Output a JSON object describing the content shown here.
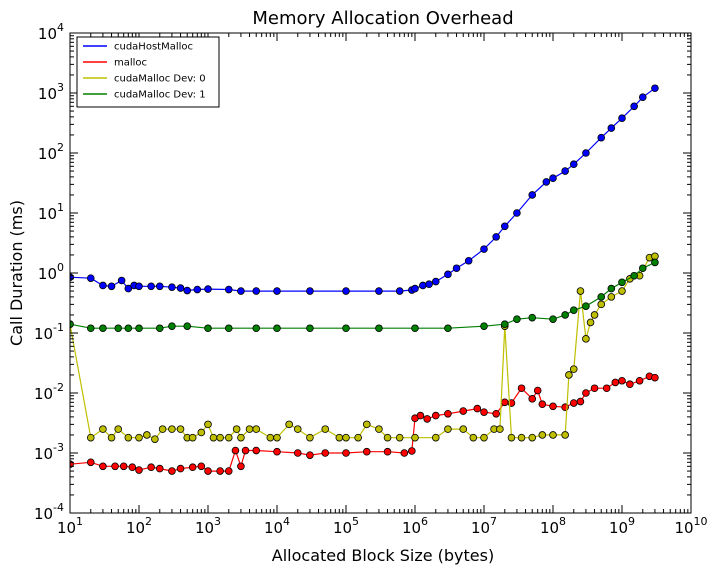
{
  "chart_data": {
    "type": "line",
    "title": "Memory Allocation Overhead",
    "xlabel": "Allocated Block Size (bytes)",
    "ylabel": "Call Duration (ms)",
    "xscale": "log",
    "yscale": "log",
    "xlim": [
      10,
      10000000000
    ],
    "ylim": [
      0.0001,
      10000
    ],
    "x_ticks": [
      {
        "base": "10",
        "exp": "1"
      },
      {
        "base": "10",
        "exp": "2"
      },
      {
        "base": "10",
        "exp": "3"
      },
      {
        "base": "10",
        "exp": "4"
      },
      {
        "base": "10",
        "exp": "5"
      },
      {
        "base": "10",
        "exp": "6"
      },
      {
        "base": "10",
        "exp": "7"
      },
      {
        "base": "10",
        "exp": "8"
      },
      {
        "base": "10",
        "exp": "9"
      },
      {
        "base": "10",
        "exp": "10"
      }
    ],
    "y_ticks": [
      {
        "base": "10",
        "exp": "-4"
      },
      {
        "base": "10",
        "exp": "-3"
      },
      {
        "base": "10",
        "exp": "-2"
      },
      {
        "base": "10",
        "exp": "-1"
      },
      {
        "base": "10",
        "exp": "0"
      },
      {
        "base": "10",
        "exp": "1"
      },
      {
        "base": "10",
        "exp": "2"
      },
      {
        "base": "10",
        "exp": "3"
      },
      {
        "base": "10",
        "exp": "4"
      }
    ],
    "legend_position": "top-left",
    "grid": false,
    "series": [
      {
        "name": "cudaHostMalloc",
        "color": "#0000ff",
        "marker": "circle",
        "points": [
          [
            10,
            0.85
          ],
          [
            20,
            0.82
          ],
          [
            30,
            0.62
          ],
          [
            40,
            0.6
          ],
          [
            56,
            0.75
          ],
          [
            70,
            0.55
          ],
          [
            85,
            0.62
          ],
          [
            100,
            0.6
          ],
          [
            150,
            0.6
          ],
          [
            200,
            0.6
          ],
          [
            300,
            0.58
          ],
          [
            400,
            0.56
          ],
          [
            500,
            0.51
          ],
          [
            700,
            0.53
          ],
          [
            1000,
            0.54
          ],
          [
            2000,
            0.53
          ],
          [
            3000,
            0.5
          ],
          [
            5000,
            0.5
          ],
          [
            10000,
            0.5
          ],
          [
            30000,
            0.5
          ],
          [
            100000,
            0.5
          ],
          [
            300000,
            0.5
          ],
          [
            600000,
            0.5
          ],
          [
            900000,
            0.52
          ],
          [
            1000000,
            0.55
          ],
          [
            1300000,
            0.62
          ],
          [
            1600000,
            0.65
          ],
          [
            2000000,
            0.72
          ],
          [
            3000000,
            0.95
          ],
          [
            4000000,
            1.2
          ],
          [
            6000000,
            1.6
          ],
          [
            10000000,
            2.5
          ],
          [
            15000000,
            4
          ],
          [
            20000000,
            6
          ],
          [
            30000000,
            10
          ],
          [
            50000000,
            20
          ],
          [
            80000000,
            33
          ],
          [
            100000000,
            38
          ],
          [
            150000000,
            50
          ],
          [
            200000000,
            65
          ],
          [
            300000000,
            100
          ],
          [
            500000000,
            180
          ],
          [
            700000000,
            260
          ],
          [
            1000000000,
            380
          ],
          [
            1500000000,
            600
          ],
          [
            2000000000,
            850
          ],
          [
            3000000000,
            1200
          ]
        ]
      },
      {
        "name": "malloc",
        "color": "#ff0000",
        "marker": "circle",
        "points": [
          [
            10,
            0.00065
          ],
          [
            20,
            0.0007
          ],
          [
            30,
            0.0006
          ],
          [
            45,
            0.0006
          ],
          [
            60,
            0.0006
          ],
          [
            80,
            0.00058
          ],
          [
            100,
            0.00052
          ],
          [
            150,
            0.00058
          ],
          [
            200,
            0.00055
          ],
          [
            300,
            0.0005
          ],
          [
            400,
            0.00055
          ],
          [
            600,
            0.00058
          ],
          [
            800,
            0.0006
          ],
          [
            1000,
            0.0005
          ],
          [
            1500,
            0.0005
          ],
          [
            2000,
            0.0005
          ],
          [
            2500,
            0.0011
          ],
          [
            3000,
            0.0006
          ],
          [
            3500,
            0.0011
          ],
          [
            5000,
            0.0011
          ],
          [
            10000,
            0.00105
          ],
          [
            20000,
            0.001
          ],
          [
            30000,
            0.00092
          ],
          [
            50000,
            0.001
          ],
          [
            100000,
            0.001
          ],
          [
            200000,
            0.00105
          ],
          [
            400000,
            0.00105
          ],
          [
            700000,
            0.001
          ],
          [
            900000,
            0.00108
          ],
          [
            1000000,
            0.0038
          ],
          [
            1200000,
            0.0042
          ],
          [
            1500000,
            0.0037
          ],
          [
            2000000,
            0.0042
          ],
          [
            3000000,
            0.0045
          ],
          [
            5000000,
            0.005
          ],
          [
            8000000,
            0.0055
          ],
          [
            10000000,
            0.0048
          ],
          [
            15000000,
            0.0045
          ],
          [
            20000000,
            0.007
          ],
          [
            25000000,
            0.0068
          ],
          [
            35000000,
            0.012
          ],
          [
            50000000,
            0.008
          ],
          [
            60000000,
            0.011
          ],
          [
            70000000,
            0.0065
          ],
          [
            100000000,
            0.006
          ],
          [
            150000000,
            0.0058
          ],
          [
            200000000,
            0.0068
          ],
          [
            250000000,
            0.0072
          ],
          [
            300000000,
            0.01
          ],
          [
            400000000,
            0.012
          ],
          [
            600000000,
            0.012
          ],
          [
            800000000,
            0.015
          ],
          [
            1000000000,
            0.016
          ],
          [
            1300000000,
            0.014
          ],
          [
            1800000000,
            0.016
          ],
          [
            2500000000,
            0.019
          ],
          [
            3000000000,
            0.018
          ]
        ]
      },
      {
        "name": "cudaMalloc Dev: 0",
        "color": "#bfbf00",
        "marker": "circle",
        "points": [
          [
            10,
            0.14
          ],
          [
            20,
            0.0018
          ],
          [
            30,
            0.0025
          ],
          [
            40,
            0.0018
          ],
          [
            50,
            0.0025
          ],
          [
            70,
            0.0018
          ],
          [
            100,
            0.0018
          ],
          [
            130,
            0.002
          ],
          [
            170,
            0.0017
          ],
          [
            220,
            0.0025
          ],
          [
            300,
            0.0025
          ],
          [
            400,
            0.0025
          ],
          [
            500,
            0.0018
          ],
          [
            600,
            0.0018
          ],
          [
            800,
            0.0022
          ],
          [
            1000,
            0.003
          ],
          [
            1200,
            0.0018
          ],
          [
            1500,
            0.0018
          ],
          [
            2000,
            0.0018
          ],
          [
            2600,
            0.0025
          ],
          [
            3000,
            0.0018
          ],
          [
            4000,
            0.0025
          ],
          [
            5000,
            0.0025
          ],
          [
            8000,
            0.0018
          ],
          [
            10000,
            0.0018
          ],
          [
            15000,
            0.003
          ],
          [
            20000,
            0.0025
          ],
          [
            30000,
            0.0018
          ],
          [
            50000,
            0.0025
          ],
          [
            80000,
            0.0018
          ],
          [
            100000,
            0.0018
          ],
          [
            150000,
            0.0018
          ],
          [
            200000,
            0.003
          ],
          [
            300000,
            0.0025
          ],
          [
            400000,
            0.0018
          ],
          [
            600000,
            0.0018
          ],
          [
            1000000,
            0.0018
          ],
          [
            2000000,
            0.0018
          ],
          [
            3000000,
            0.0025
          ],
          [
            5000000,
            0.0025
          ],
          [
            7000000,
            0.0018
          ],
          [
            10000000,
            0.0018
          ],
          [
            14000000,
            0.0025
          ],
          [
            17000000,
            0.0025
          ],
          [
            20000000,
            0.13
          ],
          [
            25000000,
            0.0018
          ],
          [
            35000000,
            0.0018
          ],
          [
            50000000,
            0.0018
          ],
          [
            70000000,
            0.002
          ],
          [
            100000000,
            0.002
          ],
          [
            150000000,
            0.002
          ],
          [
            170000000,
            0.02
          ],
          [
            200000000,
            0.025
          ],
          [
            250000000,
            0.5
          ],
          [
            300000000,
            0.08
          ],
          [
            350000000,
            0.15
          ],
          [
            400000000,
            0.2
          ],
          [
            500000000,
            0.3
          ],
          [
            700000000,
            0.4
          ],
          [
            1000000000,
            0.5
          ],
          [
            1300000000,
            0.8
          ],
          [
            1800000000,
            0.9
          ],
          [
            2500000000,
            1.8
          ],
          [
            3000000000,
            1.9
          ]
        ]
      },
      {
        "name": "cudaMalloc Dev: 1",
        "color": "#008000",
        "marker": "circle",
        "points": [
          [
            10,
            0.14
          ],
          [
            20,
            0.12
          ],
          [
            30,
            0.12
          ],
          [
            50,
            0.12
          ],
          [
            70,
            0.12
          ],
          [
            100,
            0.12
          ],
          [
            200,
            0.12
          ],
          [
            300,
            0.13
          ],
          [
            500,
            0.13
          ],
          [
            1000,
            0.12
          ],
          [
            2000,
            0.12
          ],
          [
            5000,
            0.12
          ],
          [
            10000,
            0.12
          ],
          [
            30000,
            0.12
          ],
          [
            100000,
            0.12
          ],
          [
            300000,
            0.12
          ],
          [
            1000000,
            0.12
          ],
          [
            3000000,
            0.12
          ],
          [
            10000000,
            0.13
          ],
          [
            20000000,
            0.14
          ],
          [
            30000000,
            0.17
          ],
          [
            50000000,
            0.18
          ],
          [
            100000000,
            0.17
          ],
          [
            150000000,
            0.2
          ],
          [
            200000000,
            0.24
          ],
          [
            300000000,
            0.28
          ],
          [
            500000000,
            0.4
          ],
          [
            700000000,
            0.55
          ],
          [
            1000000000,
            0.7
          ],
          [
            1500000000,
            0.9
          ],
          [
            2000000000,
            1.2
          ],
          [
            3000000000,
            1.5
          ]
        ]
      }
    ]
  }
}
